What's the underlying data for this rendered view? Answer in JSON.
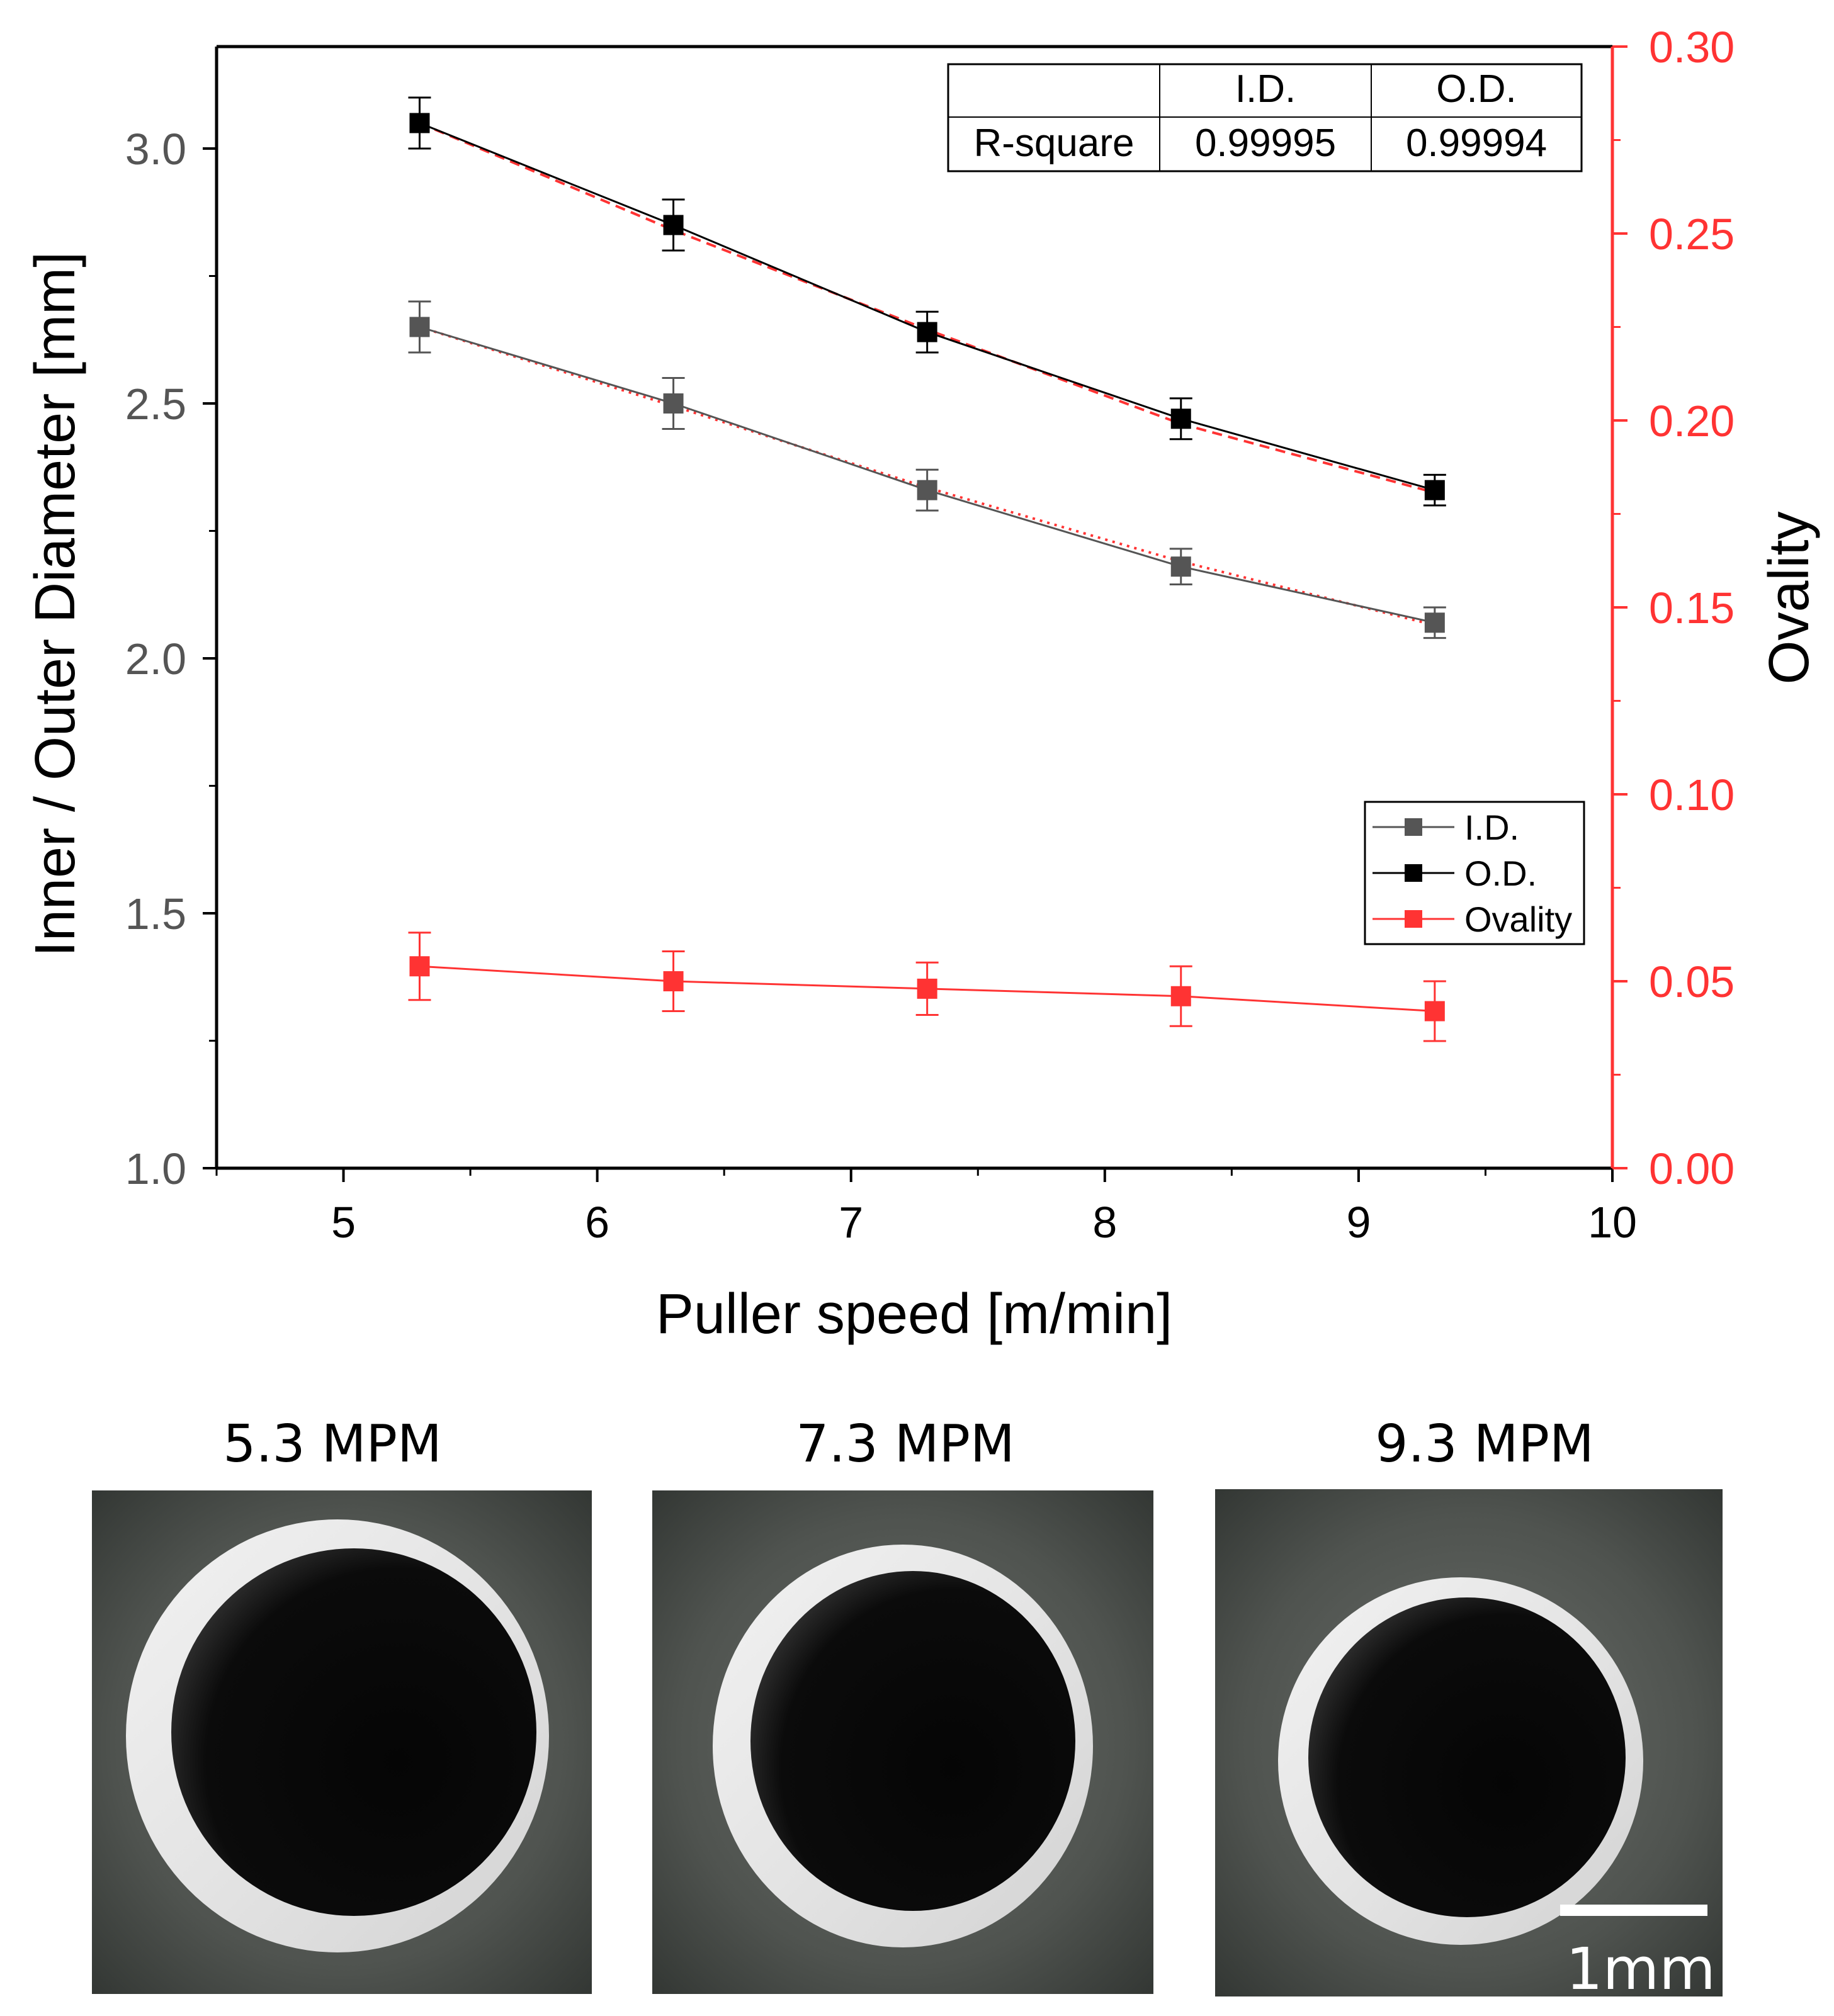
{
  "chart_data": {
    "type": "line",
    "xlabel": "Puller speed [m/min]",
    "ylabel": "Inner / Outer Diameter [mm]",
    "y2label": "Ovality",
    "xlim": [
      4.5,
      10
    ],
    "ylim": [
      1.0,
      3.2
    ],
    "y2lim": [
      0.0,
      0.3
    ],
    "x_ticks": [
      "5",
      "6",
      "7",
      "8",
      "9",
      "10"
    ],
    "y_ticks": [
      "1.0",
      "1.5",
      "2.0",
      "2.5",
      "3.0"
    ],
    "y2_ticks": [
      "0.00",
      "0.05",
      "0.10",
      "0.15",
      "0.20",
      "0.25",
      "0.30"
    ],
    "x": [
      5.3,
      6.3,
      7.3,
      8.3,
      9.3
    ],
    "series": [
      {
        "name": "I.D.",
        "axis": "left",
        "color": "#555555",
        "values": [
          2.65,
          2.5,
          2.33,
          2.18,
          2.07
        ],
        "errors": [
          0.05,
          0.05,
          0.04,
          0.035,
          0.03
        ]
      },
      {
        "name": "O.D.",
        "axis": "left",
        "color": "#000000",
        "values": [
          3.05,
          2.85,
          2.64,
          2.47,
          2.33
        ],
        "errors": [
          0.05,
          0.05,
          0.04,
          0.04,
          0.03
        ]
      },
      {
        "name": "Ovality",
        "axis": "right",
        "color": "#ff3333",
        "values": [
          0.054,
          0.05,
          0.048,
          0.046,
          0.042
        ],
        "errors": [
          0.009,
          0.008,
          0.007,
          0.008,
          0.008
        ]
      }
    ],
    "fit_lines": [
      {
        "series": "I.D.",
        "values": [
          2.65,
          2.495,
          2.335,
          2.19,
          2.065
        ],
        "color": "#ff3333",
        "style": "dotted"
      },
      {
        "series": "O.D.",
        "values": [
          3.05,
          2.84,
          2.645,
          2.46,
          2.325
        ],
        "color": "#ff3333",
        "style": "dashed"
      }
    ],
    "fit_table": {
      "columns": [
        "",
        "I.D.",
        "O.D."
      ],
      "rows": [
        [
          "R-square",
          "0.99995",
          "0.99994"
        ]
      ]
    },
    "legend": {
      "placement": "lower-right",
      "entries": [
        "I.D.",
        "O.D.",
        "Ovality"
      ]
    }
  },
  "photos": {
    "labels": [
      "5.3 MPM",
      "7.3 MPM",
      "9.3 MPM"
    ],
    "scale_bar_label": "1mm"
  }
}
